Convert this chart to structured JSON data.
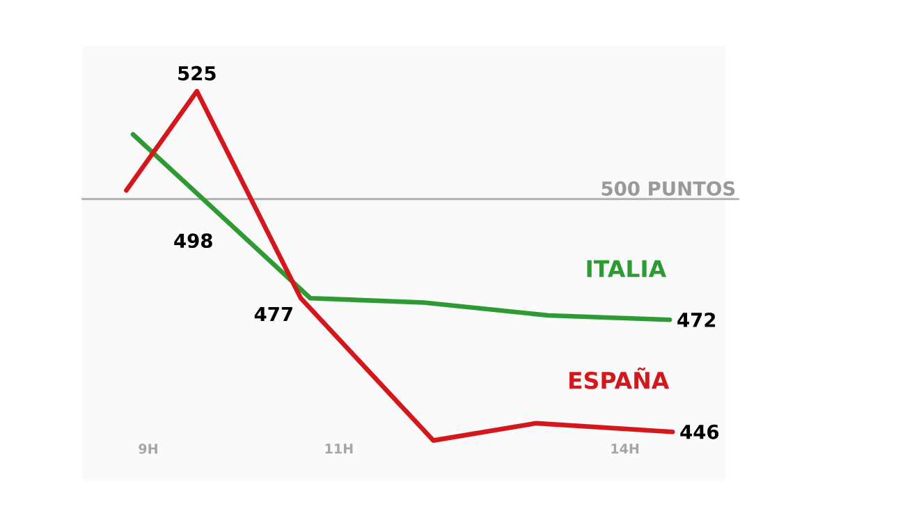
{
  "chart_data": {
    "type": "line",
    "series": [
      {
        "name": "ITALIA",
        "color": "#2e9a33",
        "x": [
          8.84,
          10.7,
          11.89,
          13.2,
          14.47
        ],
        "values": [
          515,
          477,
          476,
          473,
          472
        ],
        "value_labels": [
          null,
          null,
          null,
          null,
          "472"
        ]
      },
      {
        "name": "ESPAÑA",
        "color": "#d3171c",
        "x": [
          8.77,
          9.51,
          10.6,
          11.99,
          13.07,
          14.5
        ],
        "values": [
          502,
          525,
          477,
          444,
          448,
          446
        ],
        "value_labels": [
          null,
          "525",
          "477",
          null,
          null,
          "446"
        ]
      }
    ],
    "xlim": [
      8.3,
      15.2
    ],
    "xticks": [
      {
        "value": 9,
        "label": "9H"
      },
      {
        "value": 11,
        "label": "11H"
      },
      {
        "value": 14,
        "label": "14H"
      }
    ],
    "tick_labels": "x",
    "ref_lines": [
      {
        "axis": "y",
        "value": 500,
        "label": "500 PUNTOS",
        "color": "#aaaaaa"
      }
    ],
    "annotations": [
      "498"
    ],
    "legend": false,
    "grid": false,
    "marker": "none",
    "line_style": "solid"
  }
}
